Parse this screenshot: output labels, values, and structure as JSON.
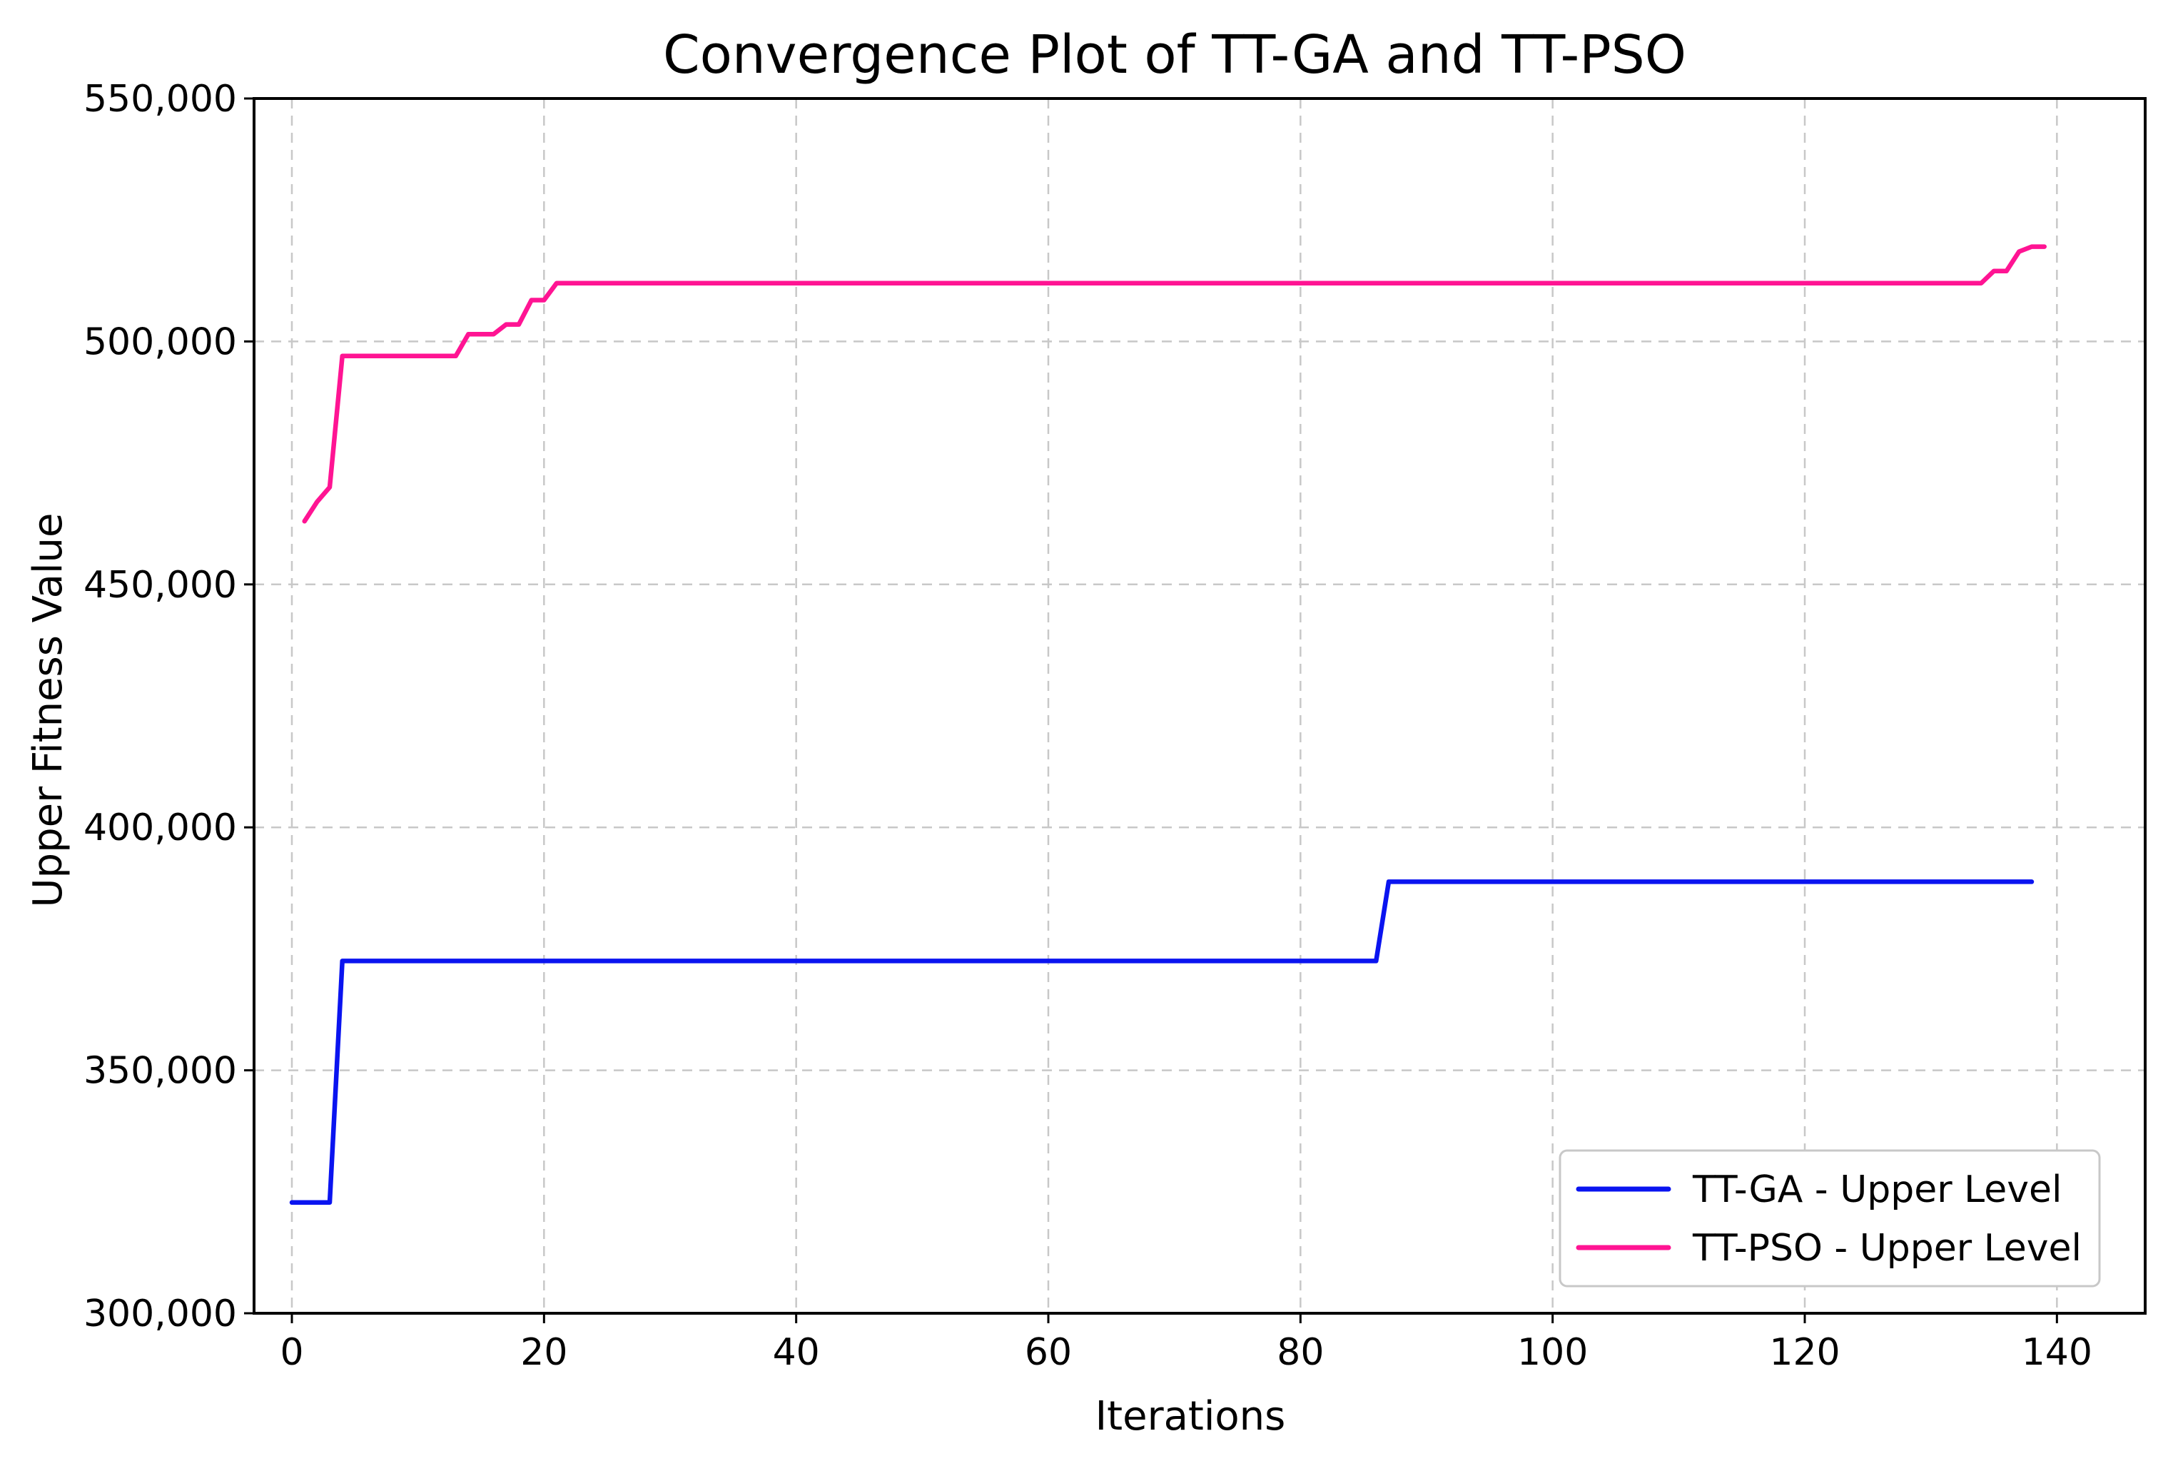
{
  "chart_data": {
    "type": "line",
    "title": "Convergence Plot of TT-GA and TT-PSO",
    "xlabel": "Iterations",
    "ylabel": "Upper Fitness Value",
    "xlim": [
      -3,
      147
    ],
    "ylim": [
      300000,
      550000
    ],
    "xticks": [
      0,
      20,
      40,
      60,
      80,
      100,
      120,
      140
    ],
    "yticks": [
      300000,
      350000,
      400000,
      450000,
      500000,
      550000
    ],
    "xtick_labels": [
      "0",
      "20",
      "40",
      "60",
      "80",
      "100",
      "120",
      "140"
    ],
    "ytick_labels": [
      "300,000",
      "350,000",
      "400,000",
      "450,000",
      "500,000",
      "550,000"
    ],
    "grid": true,
    "legend_position": "bottom-right",
    "series": [
      {
        "name": "TT-GA - Upper Level",
        "color": "#0a14f0",
        "x": [
          0,
          1,
          2,
          3,
          4,
          5,
          86,
          87,
          88,
          138
        ],
        "y": [
          322800,
          322800,
          322800,
          322800,
          372500,
          372500,
          372500,
          388800,
          388800,
          388800
        ]
      },
      {
        "name": "TT-PSO - Upper Level",
        "color": "#ff1493",
        "x": [
          1,
          2,
          3,
          4,
          5,
          12,
          13,
          14,
          15,
          16,
          17,
          18,
          19,
          20,
          21,
          22,
          134,
          135,
          136,
          137,
          138,
          139
        ],
        "y": [
          463000,
          467000,
          470000,
          497000,
          497000,
          497000,
          497000,
          501500,
          501500,
          501500,
          503500,
          503500,
          508500,
          508500,
          512000,
          512000,
          512000,
          514500,
          514500,
          518500,
          519500,
          519500
        ]
      }
    ]
  }
}
